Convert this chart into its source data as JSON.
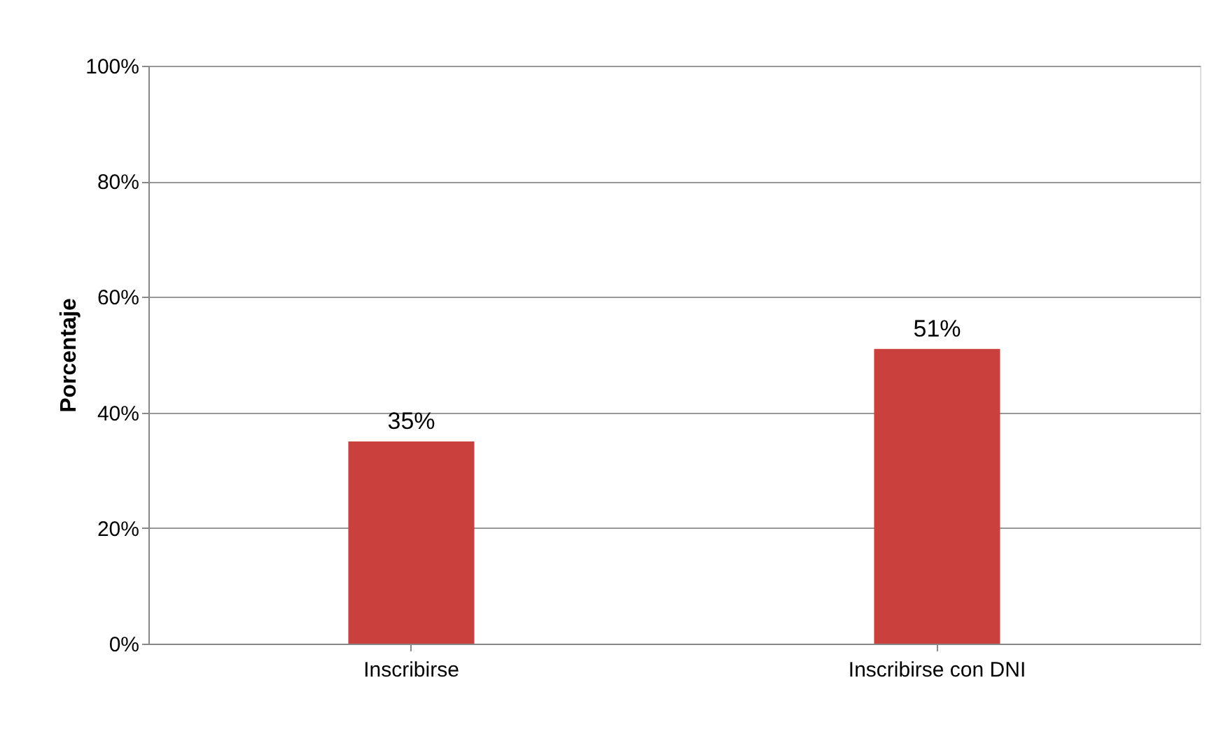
{
  "chart_data": {
    "type": "bar",
    "ylabel": "Porcentaje",
    "categories": [
      "Inscribirse",
      "Inscribirse con DNI"
    ],
    "values": [
      35,
      51
    ],
    "color": "#c9403d",
    "ylim": [
      0,
      100
    ],
    "yticks": [
      {
        "value": 0,
        "label": "0%"
      },
      {
        "value": 20,
        "label": "20%"
      },
      {
        "value": 40,
        "label": "40%"
      },
      {
        "value": 60,
        "label": "60%"
      },
      {
        "value": 80,
        "label": "80%"
      },
      {
        "value": 100,
        "label": "100%"
      }
    ],
    "value_labels": [
      "35%",
      "51%"
    ],
    "grid": "y"
  }
}
